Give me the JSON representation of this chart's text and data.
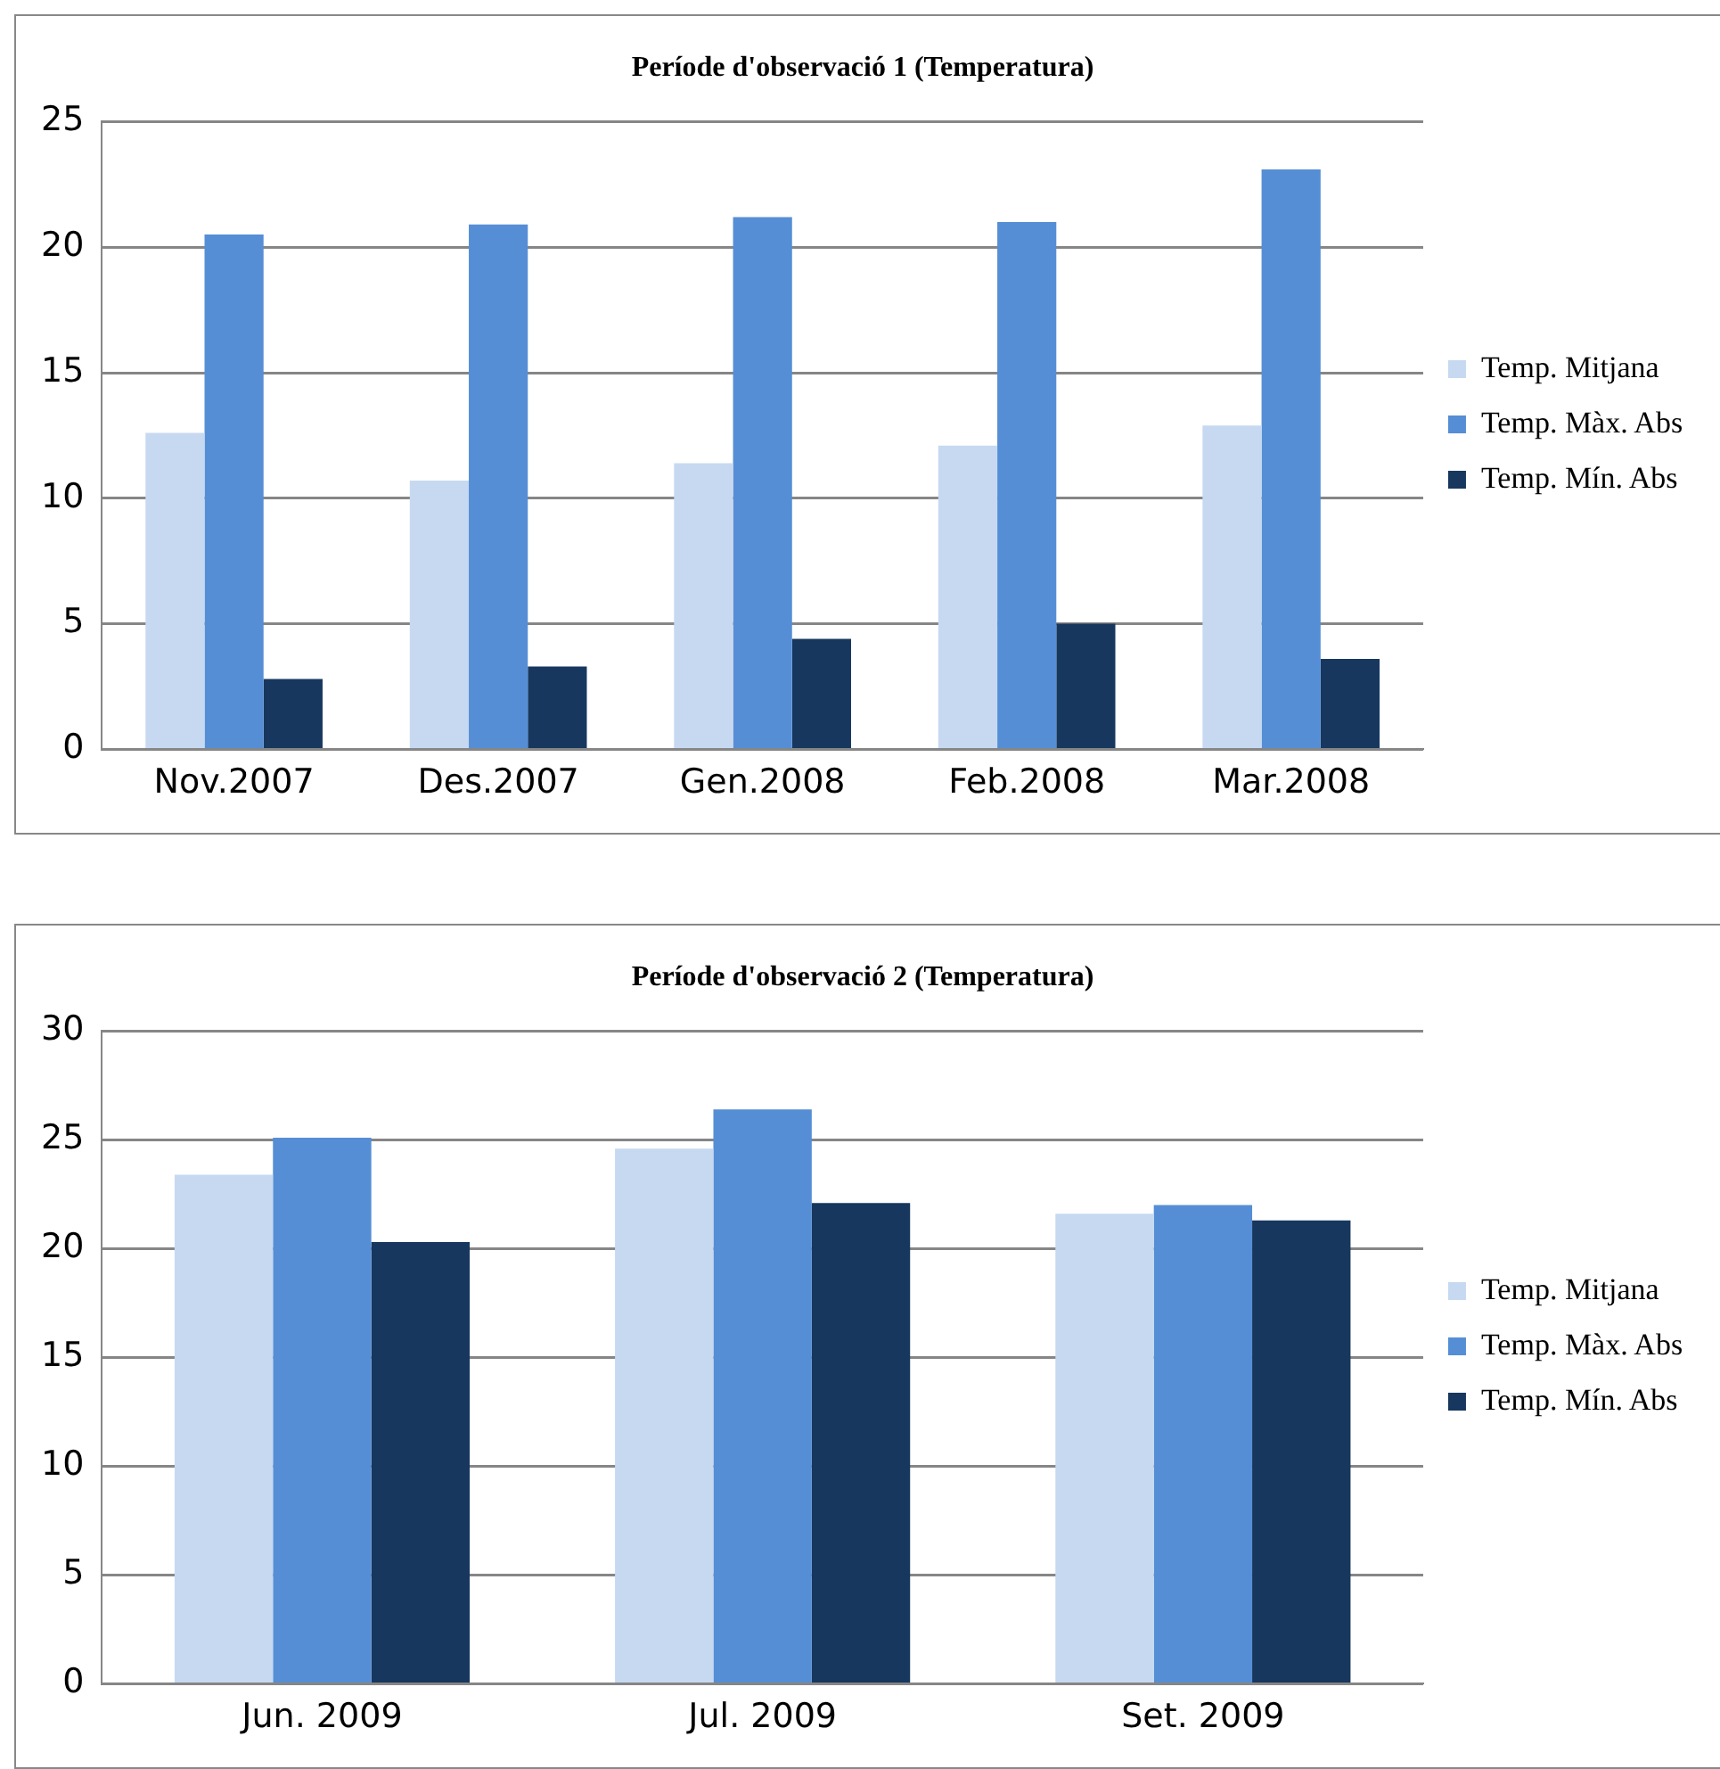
{
  "chart_data": [
    {
      "type": "bar",
      "title": "Període d'observació 1 (Temperatura)",
      "categories": [
        "Nov.2007",
        "Des.2007",
        "Gen.2008",
        "Feb.2008",
        "Mar.2008"
      ],
      "series": [
        {
          "name": "Temp. Mitjana",
          "color": "#c6d9f1",
          "values": [
            12.6,
            10.7,
            11.4,
            12.1,
            12.9
          ]
        },
        {
          "name": "Temp. Màx. Abs",
          "color": "#558ed5",
          "values": [
            20.5,
            20.9,
            21.2,
            21.0,
            23.1
          ]
        },
        {
          "name": "Temp. Mín. Abs",
          "color": "#17375e",
          "values": [
            2.8,
            3.3,
            4.4,
            5.0,
            3.6
          ]
        }
      ],
      "ylim": [
        0,
        25
      ],
      "yticks": [
        0,
        5,
        10,
        15,
        20,
        25
      ],
      "grid": "y",
      "legend": "right"
    },
    {
      "type": "bar",
      "title": "Període d'observació 2 (Temperatura)",
      "categories": [
        "Jun. 2009",
        "Jul. 2009",
        "Set. 2009"
      ],
      "series": [
        {
          "name": "Temp. Mitjana",
          "color": "#c6d9f1",
          "values": [
            23.4,
            24.6,
            21.6
          ]
        },
        {
          "name": "Temp. Màx. Abs",
          "color": "#558ed5",
          "values": [
            25.1,
            26.4,
            22.0
          ]
        },
        {
          "name": "Temp. Mín. Abs",
          "color": "#17375e",
          "values": [
            20.3,
            22.1,
            21.3
          ]
        }
      ],
      "ylim": [
        0,
        30
      ],
      "yticks": [
        0,
        5,
        10,
        15,
        20,
        25,
        30
      ],
      "grid": "y",
      "legend": "right"
    }
  ]
}
